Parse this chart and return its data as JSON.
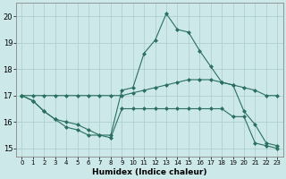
{
  "xlabel": "Humidex (Indice chaleur)",
  "xlim": [
    -0.5,
    23.5
  ],
  "ylim": [
    14.7,
    20.5
  ],
  "xticks": [
    0,
    1,
    2,
    3,
    4,
    5,
    6,
    7,
    8,
    9,
    10,
    11,
    12,
    13,
    14,
    15,
    16,
    17,
    18,
    19,
    20,
    21,
    22,
    23
  ],
  "yticks": [
    15,
    16,
    17,
    18,
    19,
    20
  ],
  "bg_color": "#cce8e8",
  "grid_color": "#aacccc",
  "line_color": "#2a7060",
  "line1_y": [
    17.0,
    16.8,
    16.4,
    16.1,
    15.8,
    15.7,
    15.5,
    15.5,
    15.5,
    17.2,
    17.3,
    18.6,
    19.1,
    20.1,
    19.5,
    19.4,
    18.7,
    18.1,
    17.5,
    17.4,
    16.4,
    15.9,
    15.2,
    15.1
  ],
  "line2_y": [
    17.0,
    16.8,
    16.4,
    16.1,
    16.0,
    15.9,
    15.7,
    15.5,
    15.4,
    16.5,
    16.5,
    16.5,
    16.5,
    16.5,
    16.5,
    16.5,
    16.5,
    16.5,
    16.5,
    16.2,
    16.2,
    15.2,
    15.1,
    15.0
  ],
  "line3_y": [
    17.0,
    17.0,
    17.0,
    17.0,
    17.0,
    17.0,
    17.0,
    17.0,
    17.0,
    17.0,
    17.1,
    17.2,
    17.3,
    17.4,
    17.5,
    17.6,
    17.6,
    17.6,
    17.5,
    17.4,
    17.3,
    17.2,
    17.0,
    17.0
  ]
}
